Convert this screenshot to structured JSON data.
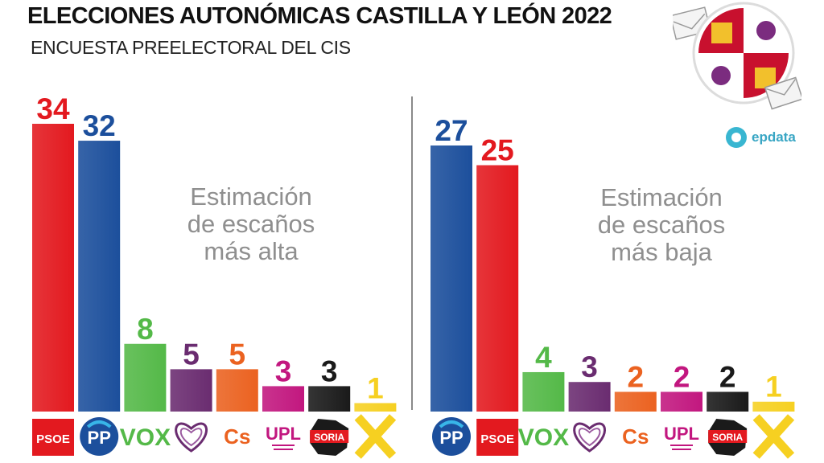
{
  "header": {
    "title": "ELECCIONES AUTONÓMICAS CASTILLA Y LEÓN 2022",
    "subtitle": "ENCUESTA PREELECTORAL DEL CIS"
  },
  "brand": {
    "name": "epdata",
    "icon": "epdata-logo-icon"
  },
  "chart_data": [
    {
      "type": "bar",
      "title": "",
      "annotation": [
        "Estimación",
        "de escaños",
        "más alta"
      ],
      "categories": [
        "PSOE",
        "PP",
        "VOX",
        "Por Ávila (heart logo)",
        "Cs",
        "UPL",
        "Soria ¡Ya!",
        "Por Ávila"
      ],
      "logo_labels": [
        "PSOE",
        "PP",
        "VOX",
        "",
        "Cs",
        "UPL",
        "SORIA",
        ""
      ],
      "values": [
        34,
        32,
        8,
        5,
        5,
        3,
        3,
        1
      ],
      "colors": [
        "#e3191f",
        "#1c4f9c",
        "#54b948",
        "#6a2c70",
        "#eb6220",
        "#c2177f",
        "#1a1a1a",
        "#f6d021"
      ],
      "ylim": [
        0,
        34
      ],
      "xlabel": "",
      "ylabel": ""
    },
    {
      "type": "bar",
      "title": "",
      "annotation": [
        "Estimación",
        "de escaños",
        "más baja"
      ],
      "categories": [
        "PP",
        "PSOE",
        "VOX",
        "Por Ávila (heart logo)",
        "Cs",
        "UPL",
        "Soria ¡Ya!",
        "Por Ávila"
      ],
      "logo_labels": [
        "PP",
        "PSOE",
        "VOX",
        "",
        "Cs",
        "UPL",
        "SORIA",
        ""
      ],
      "values": [
        27,
        25,
        4,
        3,
        2,
        2,
        2,
        1
      ],
      "colors": [
        "#1c4f9c",
        "#e3191f",
        "#54b948",
        "#6a2c70",
        "#eb6220",
        "#c2177f",
        "#1a1a1a",
        "#f6d021"
      ],
      "ylim": [
        0,
        27
      ],
      "xlabel": "",
      "ylabel": ""
    }
  ]
}
